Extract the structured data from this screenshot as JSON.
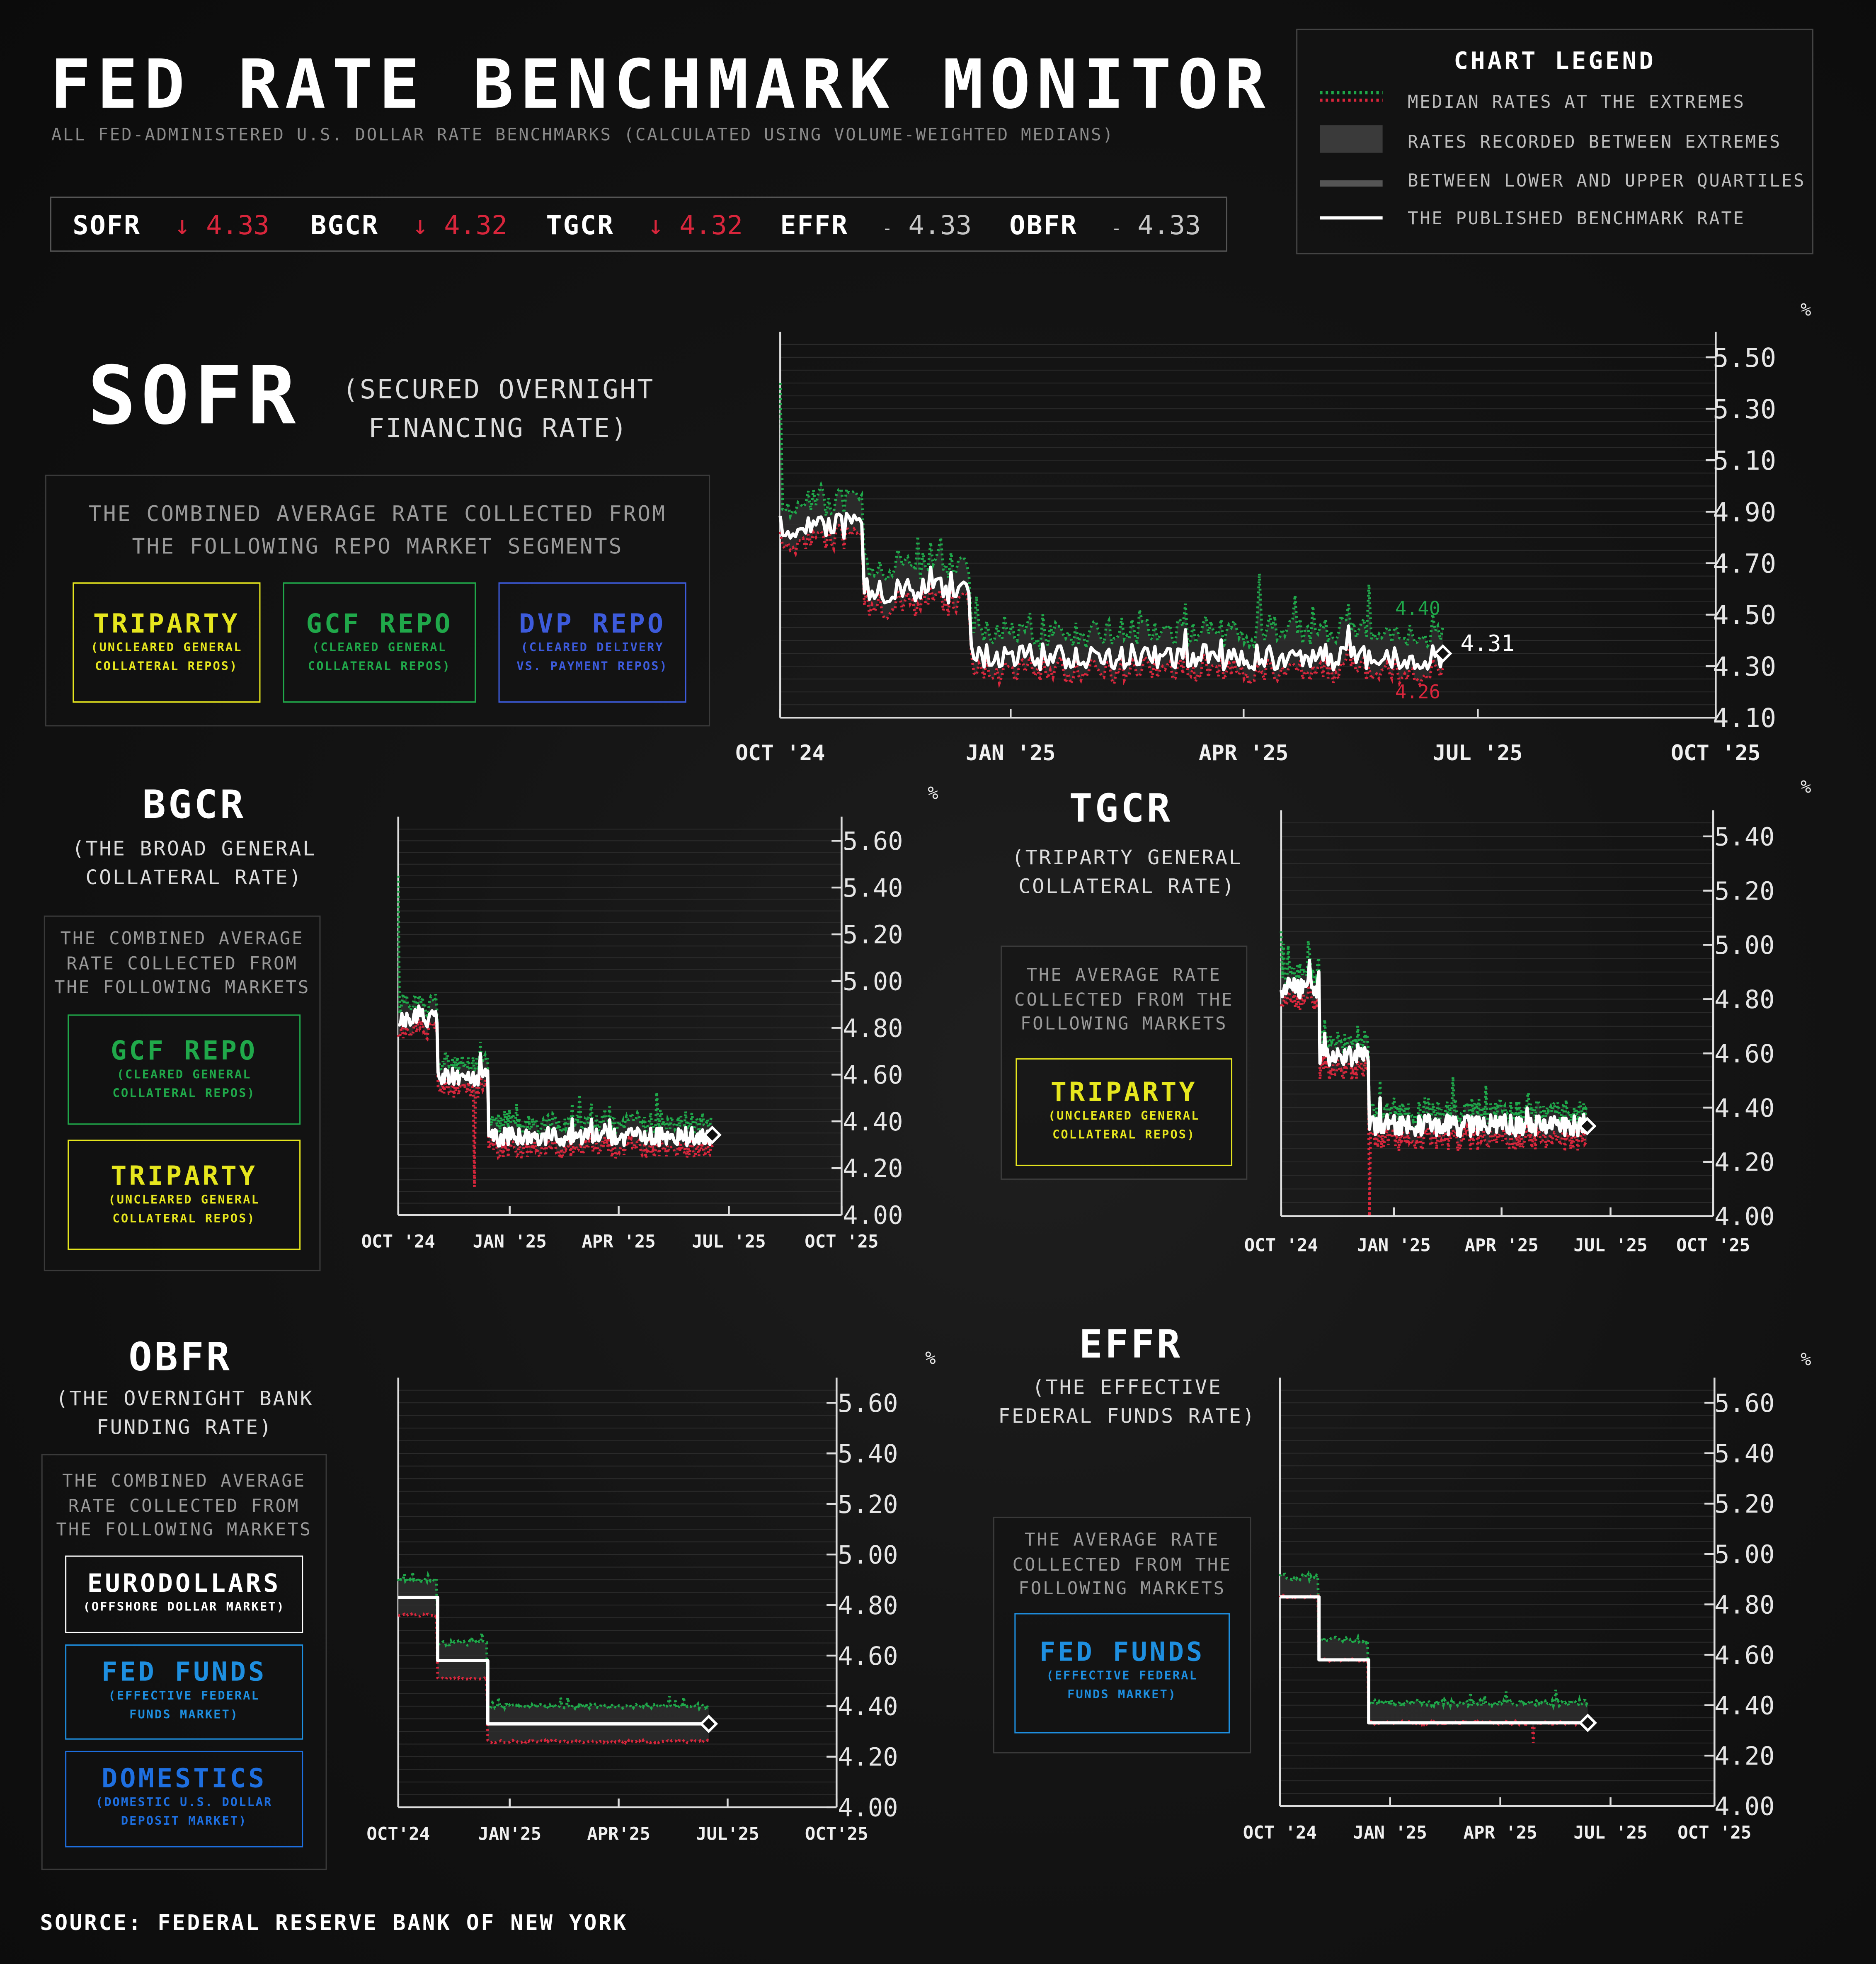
{
  "header": {
    "title": "FED RATE BENCHMARK MONITOR",
    "subtitle": "ALL FED-ADMINISTERED U.S. DOLLAR RATE BENCHMARKS (CALCULATED USING VOLUME-WEIGHTED MEDIANS)"
  },
  "ticker": [
    {
      "name": "SOFR",
      "arrow": "↓",
      "value": "4.33",
      "trend": "down"
    },
    {
      "name": "BGCR",
      "arrow": "↓",
      "value": "4.32",
      "trend": "down"
    },
    {
      "name": "TGCR",
      "arrow": "↓",
      "value": "4.32",
      "trend": "down"
    },
    {
      "name": "EFFR",
      "arrow": "-",
      "value": "4.33",
      "trend": "flat"
    },
    {
      "name": "OBFR",
      "arrow": "-",
      "value": "4.33",
      "trend": "flat"
    }
  ],
  "legend": {
    "title": "CHART LEGEND",
    "items": [
      {
        "label": "MEDIAN RATES AT THE EXTREMES"
      },
      {
        "label": "RATES RECORDED BETWEEN EXTREMES"
      },
      {
        "label": "BETWEEN LOWER AND UPPER QUARTILES"
      },
      {
        "label": "THE PUBLISHED BENCHMARK RATE"
      }
    ]
  },
  "colors": {
    "upper": "#1fa84a",
    "lower": "#d9263c",
    "rate": "#ffffff",
    "tripartyAccent": "#e6e61e",
    "gcfAccent": "#20a84a",
    "dvpAccent": "#3d5bdc",
    "fedFundsAccent": "#1e8fe0",
    "domesticsAccent": "#1e6fe0",
    "eurodollarsAccent": "#ffffff"
  },
  "sections": {
    "sofr": {
      "name": "SOFR",
      "full": [
        "(SECURED OVERNIGHT",
        "FINANCING RATE)"
      ],
      "desc": [
        "THE COMBINED AVERAGE RATE COLLECTED FROM",
        "THE FOLLOWING REPO MARKET SEGMENTS"
      ],
      "segments": [
        {
          "title": "TRIPARTY",
          "sub": [
            "(UNCLEARED GENERAL",
            "COLLATERAL REPOS)"
          ],
          "color": "#e6e61e"
        },
        {
          "title": "GCF REPO",
          "sub": [
            "(CLEARED GENERAL",
            "COLLATERAL REPOS)"
          ],
          "color": "#20a84a"
        },
        {
          "title": "DVP REPO",
          "sub": [
            "(CLEARED DELIVERY",
            "VS. PAYMENT REPOS)"
          ],
          "color": "#3d5bdc"
        }
      ]
    },
    "bgcr": {
      "name": "BGCR",
      "full": [
        "(THE BROAD GENERAL",
        "COLLATERAL RATE)"
      ],
      "desc": [
        "THE COMBINED AVERAGE",
        "RATE COLLECTED FROM",
        "THE FOLLOWING MARKETS"
      ],
      "segments": [
        {
          "title": "GCF REPO",
          "sub": [
            "(CLEARED GENERAL",
            "COLLATERAL REPOS)"
          ],
          "color": "#20a84a"
        },
        {
          "title": "TRIPARTY",
          "sub": [
            "(UNCLEARED GENERAL",
            "COLLATERAL REPOS)"
          ],
          "color": "#e6e61e"
        }
      ]
    },
    "tgcr": {
      "name": "TGCR",
      "full": [
        "(TRIPARTY GENERAL",
        "COLLATERAL RATE)"
      ],
      "desc": [
        "THE AVERAGE RATE",
        "COLLECTED FROM THE",
        "FOLLOWING MARKETS"
      ],
      "segments": [
        {
          "title": "TRIPARTY",
          "sub": [
            "(UNCLEARED GENERAL",
            "COLLATERAL REPOS)"
          ],
          "color": "#e6e61e"
        }
      ]
    },
    "obfr": {
      "name": "OBFR",
      "full": [
        "(THE OVERNIGHT BANK",
        "FUNDING RATE)"
      ],
      "desc": [
        "THE COMBINED AVERAGE",
        "RATE COLLECTED FROM",
        "THE FOLLOWING MARKETS"
      ],
      "segments": [
        {
          "title": "EURODOLLARS",
          "sub": [
            "(OFFSHORE DOLLAR MARKET)"
          ],
          "color": "#ffffff"
        },
        {
          "title": "FED FUNDS",
          "sub": [
            "(EFFECTIVE FEDERAL",
            "FUNDS MARKET)"
          ],
          "color": "#1e8fe0"
        },
        {
          "title": "DOMESTICS",
          "sub": [
            "(DOMESTIC U.S. DOLLAR",
            "DEPOSIT MARKET)"
          ],
          "color": "#1e6fe0"
        }
      ]
    },
    "effr": {
      "name": "EFFR",
      "full": [
        "(THE EFFECTIVE",
        "FEDERAL FUNDS RATE)"
      ],
      "desc": [
        "THE AVERAGE RATE",
        "COLLECTED FROM THE",
        "FOLLOWING MARKETS"
      ],
      "segments": [
        {
          "title": "FED FUNDS",
          "sub": [
            "(EFFECTIVE FEDERAL",
            "FUNDS MARKET)"
          ],
          "color": "#1e8fe0"
        }
      ]
    }
  },
  "chart_data": [
    {
      "id": "sofr",
      "type": "line",
      "title": "SOFR",
      "unit": "%",
      "ylim": [
        4.1,
        5.55
      ],
      "yticks": [
        "5.50",
        "5.30",
        "5.10",
        "4.90",
        "4.70",
        "4.50",
        "4.30",
        "4.10"
      ],
      "xticks": [
        "OCT '24",
        "JAN '25",
        "APR '25",
        "JUL '25",
        "OCT '25"
      ],
      "xrange": [
        0,
        12
      ],
      "regimes": [
        [
          0,
          4.84
        ],
        [
          1.05,
          4.59
        ],
        [
          2.45,
          4.33
        ],
        [
          8.5,
          4.33
        ]
      ],
      "upper_offset": 0.1,
      "lower_offset": 0.05,
      "noise": 0.05,
      "end": 8.5,
      "annotations": {
        "upper": "4.40",
        "rate": "4.31",
        "lower": "4.26"
      },
      "spikes": [
        [
          0,
          5.4
        ],
        [
          2.05,
          4.8
        ],
        [
          2.45,
          4.35
        ],
        [
          6.15,
          4.66
        ],
        [
          4.6,
          4.52
        ]
      ]
    },
    {
      "id": "bgcr",
      "type": "line",
      "title": "BGCR",
      "unit": "%",
      "ylim": [
        4.0,
        5.65
      ],
      "yticks": [
        "5.60",
        "5.40",
        "5.20",
        "5.00",
        "4.80",
        "4.60",
        "4.40",
        "4.20",
        "4.00"
      ],
      "xticks": [
        "OCT '24",
        "JAN '25",
        "APR '25",
        "JUL '25",
        "OCT '25"
      ],
      "xrange": [
        0,
        12
      ],
      "regimes": [
        [
          0,
          4.84
        ],
        [
          1.05,
          4.59
        ],
        [
          2.45,
          4.33
        ],
        [
          8.5,
          4.32
        ]
      ],
      "upper_offset": 0.06,
      "lower_offset": 0.05,
      "noise": 0.04,
      "end": 8.5,
      "spikes": [
        [
          0,
          5.45
        ],
        [
          2.05,
          4.12
        ]
      ]
    },
    {
      "id": "tgcr",
      "type": "line",
      "title": "TGCR",
      "unit": "%",
      "ylim": [
        4.0,
        5.45
      ],
      "yticks": [
        "5.40",
        "5.20",
        "5.00",
        "4.80",
        "4.60",
        "4.40",
        "4.20",
        "4.00"
      ],
      "xticks": [
        "OCT '24",
        "JAN '25",
        "APR '25",
        "JUL '25",
        "OCT '25"
      ],
      "xrange": [
        0,
        12
      ],
      "regimes": [
        [
          0,
          4.84
        ],
        [
          1.05,
          4.59
        ],
        [
          2.45,
          4.33
        ],
        [
          8.5,
          4.32
        ]
      ],
      "upper_offset": 0.05,
      "lower_offset": 0.05,
      "noise": 0.04,
      "end": 8.5,
      "spikes": [
        [
          0,
          5.05
        ],
        [
          2.45,
          4.0
        ]
      ]
    },
    {
      "id": "obfr",
      "type": "line",
      "title": "OBFR",
      "unit": "%",
      "ylim": [
        4.0,
        5.65
      ],
      "yticks": [
        "5.60",
        "5.40",
        "5.20",
        "5.00",
        "4.80",
        "4.60",
        "4.40",
        "4.20",
        "4.00"
      ],
      "xticks": [
        "OCT'24",
        "JAN'25",
        "APR'25",
        "JUL'25",
        "OCT'25"
      ],
      "xrange": [
        0,
        12
      ],
      "regimes": [
        [
          0,
          4.83
        ],
        [
          1.05,
          4.58
        ],
        [
          2.45,
          4.33
        ],
        [
          8.5,
          4.33
        ]
      ],
      "upper_offset": 0.07,
      "lower_offset": 0.07,
      "noise": 0.015,
      "end": 8.5,
      "step": true,
      "spikes": []
    },
    {
      "id": "effr",
      "type": "line",
      "title": "EFFR",
      "unit": "%",
      "ylim": [
        4.0,
        5.65
      ],
      "yticks": [
        "5.60",
        "5.40",
        "5.20",
        "5.00",
        "4.80",
        "4.60",
        "4.40",
        "4.20",
        "4.00"
      ],
      "xticks": [
        "OCT '24",
        "JAN '25",
        "APR '25",
        "JUL '25",
        "OCT '25"
      ],
      "xrange": [
        0,
        12
      ],
      "regimes": [
        [
          0,
          4.83
        ],
        [
          1.05,
          4.58
        ],
        [
          2.45,
          4.33
        ],
        [
          8.5,
          4.33
        ]
      ],
      "upper_offset": 0.08,
      "lower_offset": 0.0,
      "noise": 0.02,
      "end": 8.5,
      "step": true,
      "spikes": [
        [
          0.8,
          4.92
        ],
        [
          7.0,
          4.25
        ]
      ]
    }
  ],
  "source": "SOURCE: FEDERAL RESERVE BANK OF NEW YORK"
}
